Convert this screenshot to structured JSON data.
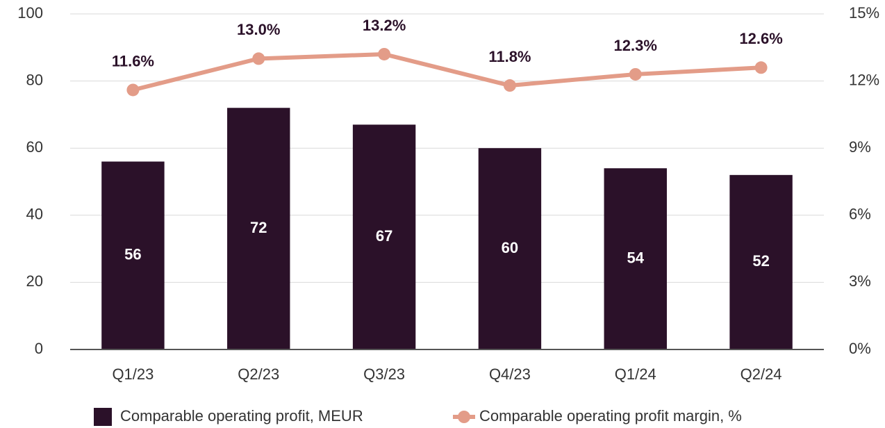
{
  "chart_data": {
    "type": "bar",
    "categories": [
      "Q1/23",
      "Q2/23",
      "Q3/23",
      "Q4/23",
      "Q1/24",
      "Q2/24"
    ],
    "series": [
      {
        "name": "Comparable operating profit, MEUR",
        "type": "bar",
        "color": "#2b1129",
        "values": [
          56,
          72,
          67,
          60,
          54,
          52
        ]
      },
      {
        "name": "Comparable operating profit margin, %",
        "type": "line",
        "axis": "y2",
        "color": "#e39c88",
        "values": [
          11.6,
          13.0,
          13.2,
          11.8,
          12.3,
          12.6
        ],
        "value_labels": [
          "11.6%",
          "13.0%",
          "13.2%",
          "11.8%",
          "12.3%",
          "12.6%"
        ]
      }
    ],
    "ylim": [
      0,
      100
    ],
    "yticks": [
      0,
      20,
      40,
      60,
      80,
      100
    ],
    "y2lim": [
      0,
      15
    ],
    "y2ticks": [
      {
        "value": 0,
        "label": "0%"
      },
      {
        "value": 3,
        "label": "3%"
      },
      {
        "value": 6,
        "label": "6%"
      },
      {
        "value": 9,
        "label": "9%"
      },
      {
        "value": 12,
        "label": "12%"
      },
      {
        "value": 15,
        "label": "15%"
      }
    ],
    "grid": true
  }
}
